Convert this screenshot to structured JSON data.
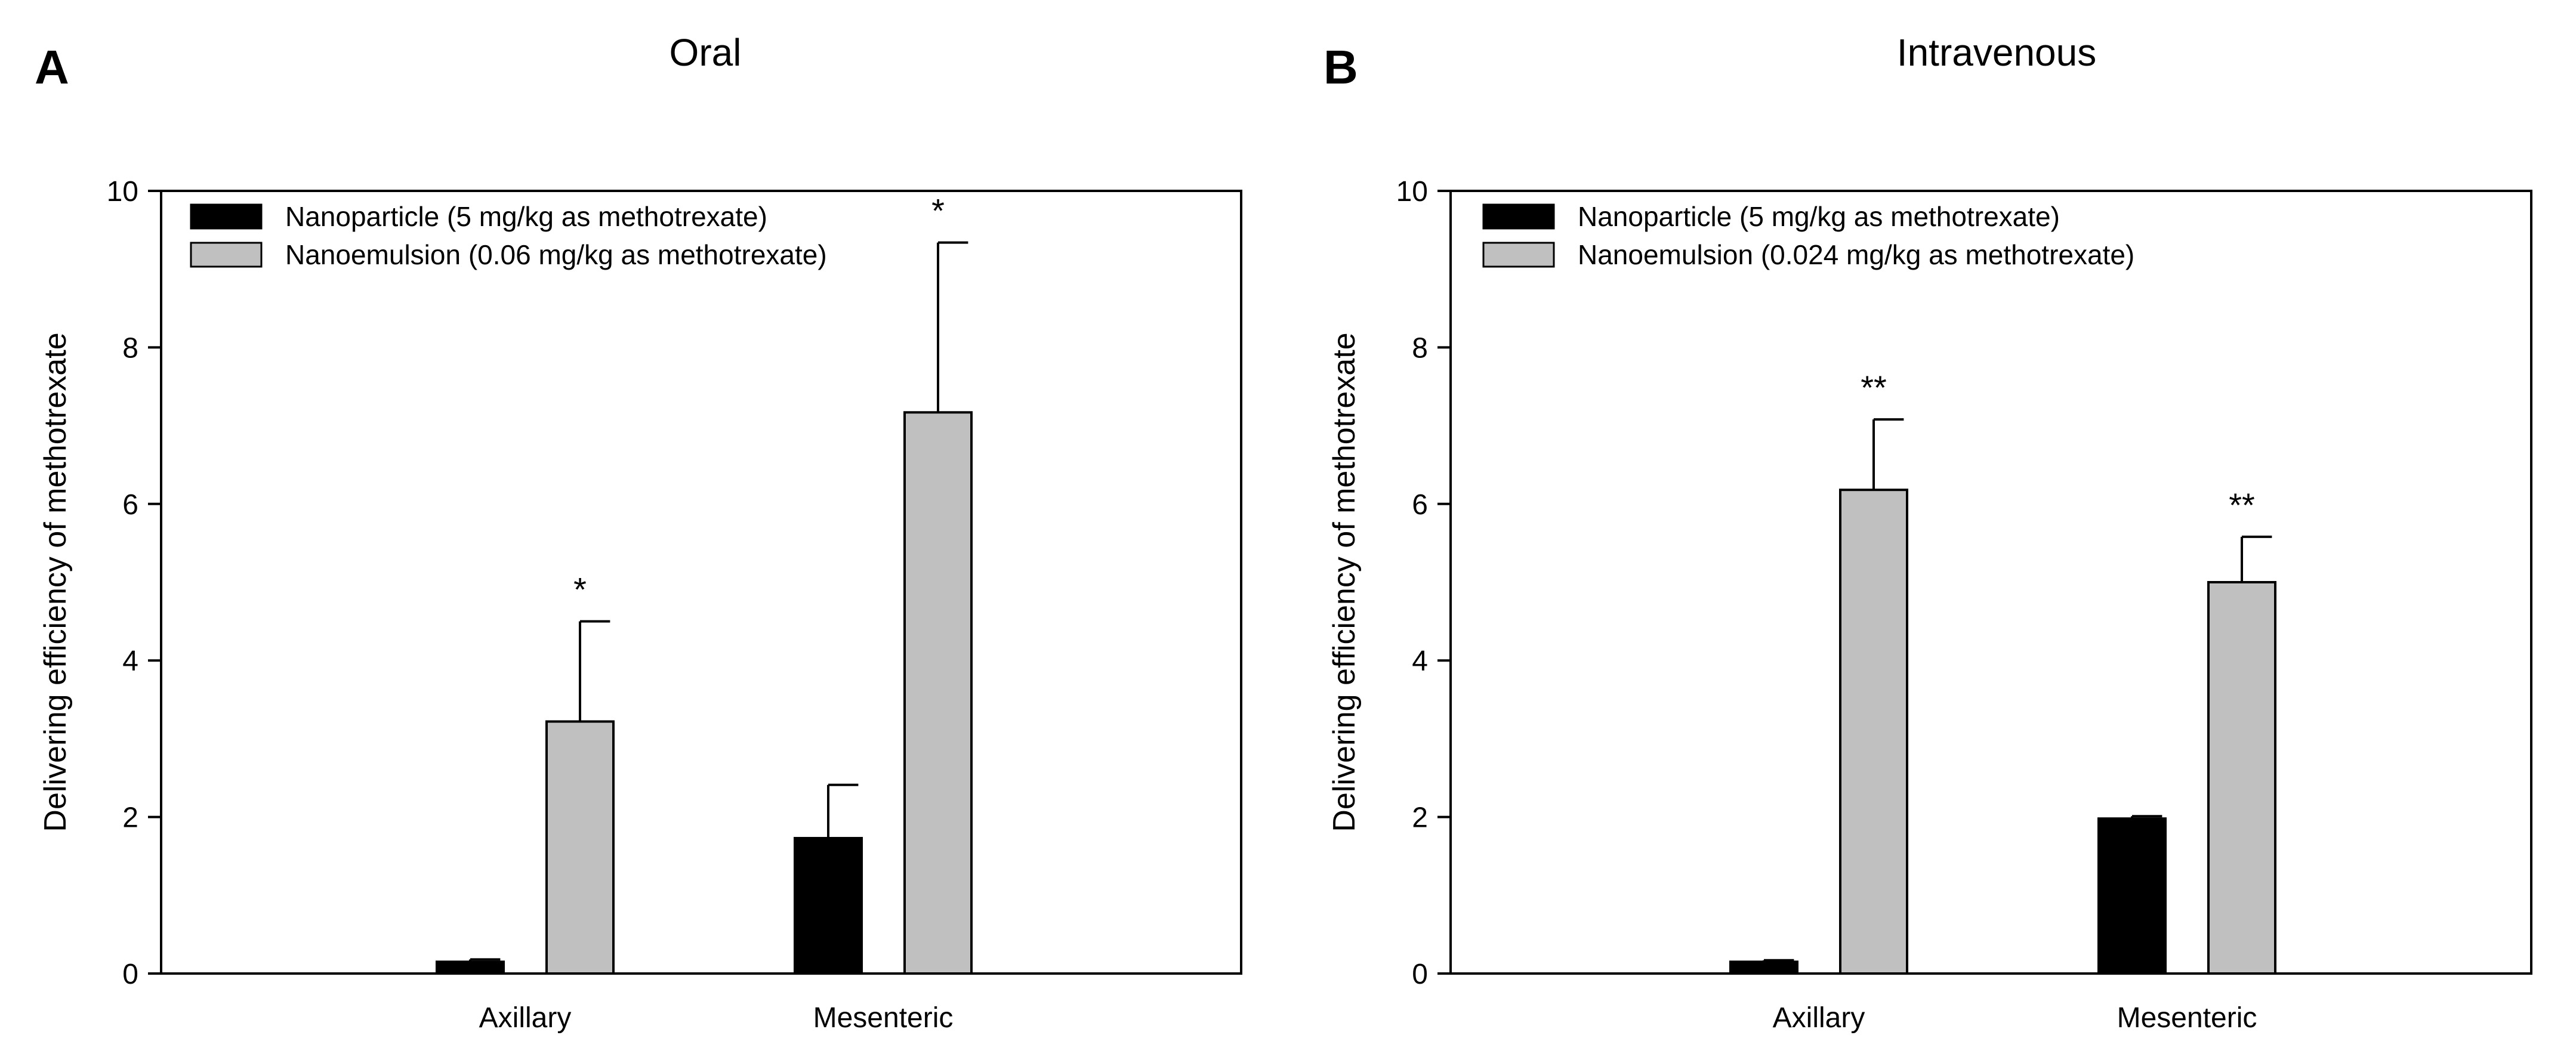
{
  "figure": {
    "colors": {
      "nanoparticle": "#000000",
      "nanoemulsion": "#c0c0c0",
      "axis": "#000000",
      "background": "#ffffff"
    }
  },
  "chart_data": [
    {
      "panel_letter": "A",
      "type": "bar",
      "title": "Oral",
      "xlabel": "",
      "ylabel": "Delivering efficiency of methotrexate",
      "ylim": [
        0,
        10
      ],
      "yticks": [
        0,
        2,
        4,
        6,
        8,
        10
      ],
      "ytick_labels": [
        "0",
        "2",
        "4",
        "6",
        "8",
        "10"
      ],
      "categories": [
        "Axillary",
        "Mesenteric"
      ],
      "legend_position": "top-left",
      "series": [
        {
          "name": "Nanoparticle (5 mg/kg as methotrexate)",
          "color": "#000000",
          "values": [
            0.15,
            1.73
          ],
          "errors": [
            0.03,
            0.68
          ],
          "significance": [
            "",
            ""
          ]
        },
        {
          "name": "Nanoemulsion (0.06 mg/kg as methotrexate)",
          "color": "#c0c0c0",
          "values": [
            3.22,
            7.17
          ],
          "errors": [
            1.28,
            2.17
          ],
          "significance": [
            "*",
            "*"
          ]
        }
      ]
    },
    {
      "panel_letter": "B",
      "type": "bar",
      "title": "Intravenous",
      "xlabel": "",
      "ylabel": "Delivering efficiency of methotrexate",
      "ylim": [
        0,
        10
      ],
      "yticks": [
        0,
        2,
        4,
        6,
        8,
        10
      ],
      "ytick_labels": [
        "0",
        "2",
        "4",
        "6",
        "8",
        "10"
      ],
      "categories": [
        "Axillary",
        "Mesenteric"
      ],
      "legend_position": "top-left",
      "series": [
        {
          "name": "Nanoparticle (5 mg/kg as methotrexate)",
          "color": "#000000",
          "values": [
            0.15,
            1.98
          ],
          "errors": [
            0.02,
            0.03
          ],
          "significance": [
            "",
            ""
          ]
        },
        {
          "name": "Nanoemulsion (0.024 mg/kg as methotrexate)",
          "color": "#c0c0c0",
          "values": [
            6.18,
            5.0
          ],
          "errors": [
            0.9,
            0.58
          ],
          "significance": [
            "**",
            "**"
          ]
        }
      ]
    }
  ]
}
